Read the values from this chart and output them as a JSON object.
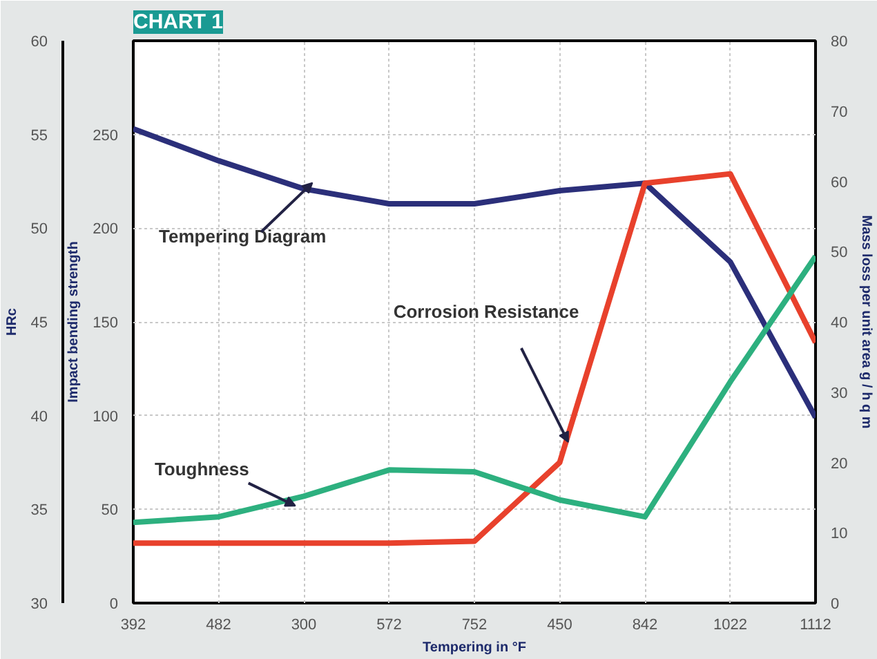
{
  "chart_data": {
    "type": "line",
    "title": "CHART 1",
    "xlabel": "Tempering in °F",
    "ylabel": "Impact bending strength",
    "y2label": "HRc",
    "y3label": "Mass loss per unit area g / h q m",
    "categories": [
      "392",
      "482",
      "300",
      "572",
      "752",
      "450",
      "842",
      "1022",
      "1112"
    ],
    "series": [
      {
        "name": "Tempering Diagram",
        "color": "#2b2f7a",
        "values": [
          253,
          236,
          221,
          213,
          213,
          220,
          224,
          182,
          99
        ]
      },
      {
        "name": "Corrosion Resistance",
        "color": "#e8412c",
        "values": [
          32,
          32,
          32,
          32,
          33,
          75,
          224,
          229,
          139
        ]
      },
      {
        "name": "Toughness",
        "color": "#2db07f",
        "values": [
          43,
          46,
          57,
          71,
          70,
          55,
          46,
          118,
          185
        ]
      }
    ],
    "ylim": [
      0,
      300
    ],
    "yticks": [
      0,
      50,
      100,
      150,
      200,
      250
    ],
    "y2lim": [
      30,
      60
    ],
    "y2ticks": [
      30,
      35,
      40,
      45,
      50,
      55,
      60
    ],
    "y3lim": [
      0,
      80
    ],
    "y3ticks": [
      0,
      10,
      20,
      30,
      40,
      50,
      60,
      70,
      80
    ],
    "grid": true,
    "line_style": "solid",
    "marker": "none"
  }
}
